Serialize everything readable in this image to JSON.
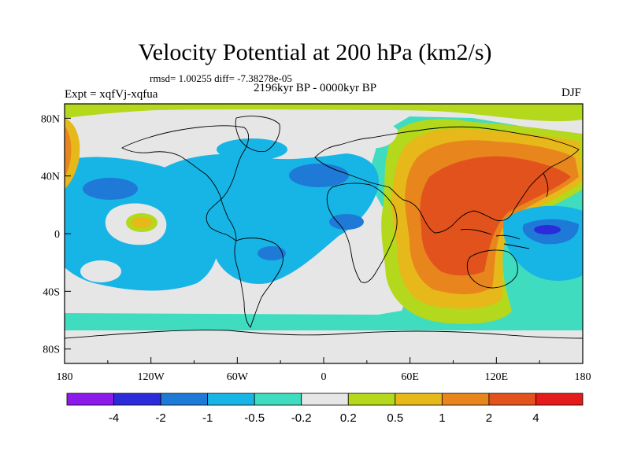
{
  "header": {
    "title": "Velocity Potential at 200 hPa (km2/s)",
    "stats": "rmsd= 1.00255 diff= -7.38278e-05",
    "experiment": "Expt = xqfVj-xqfua",
    "period": "2196kyr BP - 0000kyr BP",
    "season": "DJF"
  },
  "chart_data": {
    "type": "heatmap",
    "title": "Velocity Potential at 200 hPa (km2/s)",
    "xlabel": "",
    "ylabel": "",
    "x_range": [
      -180,
      180
    ],
    "y_range": [
      -90,
      90
    ],
    "x_ticks": [
      {
        "value": -180,
        "label": "180"
      },
      {
        "value": -120,
        "label": "120W"
      },
      {
        "value": -60,
        "label": "60W"
      },
      {
        "value": 0,
        "label": "0"
      },
      {
        "value": 60,
        "label": "60E"
      },
      {
        "value": 120,
        "label": "120E"
      },
      {
        "value": 180,
        "label": "180"
      }
    ],
    "y_ticks": [
      {
        "value": 80,
        "label": "80N"
      },
      {
        "value": 40,
        "label": "40N"
      },
      {
        "value": 0,
        "label": "0"
      },
      {
        "value": -40,
        "label": "40S"
      },
      {
        "value": -80,
        "label": "80S"
      }
    ],
    "contour_levels": [
      -4,
      -2,
      -1,
      -0.5,
      -0.2,
      0.2,
      0.5,
      1,
      2,
      4
    ],
    "colorbar": {
      "colors": [
        "#8c1aeb",
        "#2b2bd9",
        "#1e7ad6",
        "#17b5e6",
        "#3fdcc0",
        "#e6e6e6",
        "#b4d81c",
        "#e6b81a",
        "#e8861d",
        "#e2521d",
        "#e51a1a"
      ],
      "labels": [
        "-4",
        "-2",
        "-1",
        "-0.5",
        "-0.2",
        "0.2",
        "0.5",
        "1",
        "2",
        "4"
      ],
      "placement": "bottom"
    },
    "features": [
      {
        "name": "positive anomaly centre, Indian Ocean / Asia",
        "lon": 80,
        "lat": 5,
        "level": "2 to 4"
      },
      {
        "name": "negative anomaly centre, west Pacific",
        "lon": 155,
        "lat": 2,
        "level": "-2 to -4"
      },
      {
        "name": "weak positive centre, central Pacific",
        "lon": -120,
        "lat": 10,
        "level": "0.5 to 1"
      }
    ],
    "coastlines": true,
    "grid": false
  }
}
